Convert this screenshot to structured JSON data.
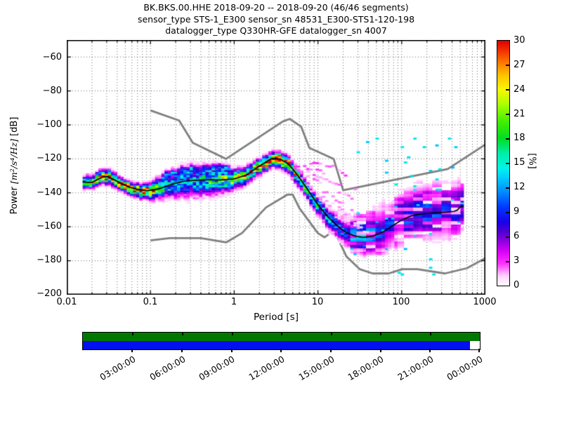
{
  "title": {
    "line1": "BK.BKS.00.HHE   2018-09-20 -- 2018-09-20  (46/46 segments)",
    "line2": "sensor_type STS-1_E300 sensor_sn 48531_E300-STS1-120-198",
    "line3": "datalogger_type Q330HR-GFE datalogger_sn 4007"
  },
  "axes": {
    "x": {
      "label": "Period [s]",
      "ticks": [
        "0.01",
        "0.1",
        "1",
        "10",
        "100",
        "1000"
      ]
    },
    "y": {
      "label_prefix": "Power ",
      "label_math": "[m²/s⁴/Hz]",
      "label_suffix": " [dB]",
      "ticks": [
        "−60",
        "−80",
        "−100",
        "−120",
        "−140",
        "−160",
        "−180",
        "−200"
      ]
    },
    "colorbar": {
      "label": "[%]",
      "ticks": [
        "30",
        "27",
        "24",
        "21",
        "18",
        "15",
        "12",
        "9",
        "6",
        "3",
        "0"
      ]
    }
  },
  "timeline": {
    "labels": [
      "03:00:00",
      "06:00:00",
      "09:00:00",
      "12:00:00",
      "15:00:00",
      "18:00:00",
      "21:00:00",
      "00:00:00"
    ],
    "green_color": "#007800",
    "blue_color": "#0010ee",
    "coverage_top": 1.0,
    "coverage_bottom": 0.975
  },
  "chart_data": {
    "type": "heatmap",
    "title": "BK.BKS.00.HHE 2018-09-20 -- 2018-09-20 (46/46 segments)",
    "xlabel": "Period [s]",
    "ylabel": "Power [m^2/s^4/Hz] [dB]",
    "xlim_log_period": [
      -2,
      3
    ],
    "ylim_db": [
      -200,
      -50
    ],
    "grid": true,
    "colorbar_label": "[%]",
    "colorbar_range": [
      0,
      30
    ],
    "colormap_stops": [
      [
        0.0,
        "#ffffff"
      ],
      [
        0.04,
        "#ffd0ff"
      ],
      [
        0.09,
        "#ff30ff"
      ],
      [
        0.14,
        "#d800f8"
      ],
      [
        0.18,
        "#9000e0"
      ],
      [
        0.22,
        "#5000d0"
      ],
      [
        0.26,
        "#1800e8"
      ],
      [
        0.32,
        "#0038ff"
      ],
      [
        0.38,
        "#0088ff"
      ],
      [
        0.44,
        "#00ccff"
      ],
      [
        0.48,
        "#00f4e8"
      ],
      [
        0.54,
        "#00eeaa"
      ],
      [
        0.6,
        "#00dd22"
      ],
      [
        0.67,
        "#44ee00"
      ],
      [
        0.74,
        "#aaff00"
      ],
      [
        0.8,
        "#f8f800"
      ],
      [
        0.86,
        "#ffc000"
      ],
      [
        0.91,
        "#ff7800"
      ],
      [
        0.96,
        "#f03000"
      ],
      [
        1.0,
        "#dd0000"
      ]
    ],
    "noise_model_color": "#7f7f7f",
    "nhnm": [
      [
        0.1,
        -91.5
      ],
      [
        0.22,
        -97.4
      ],
      [
        0.32,
        -110.5
      ],
      [
        0.8,
        -120.0
      ],
      [
        3.8,
        -98.0
      ],
      [
        4.6,
        -96.5
      ],
      [
        6.3,
        -101.0
      ],
      [
        7.9,
        -113.5
      ],
      [
        15.4,
        -120.0
      ],
      [
        20.0,
        -138.5
      ],
      [
        354.8,
        -126.0
      ],
      [
        1000,
        -111.5
      ]
    ],
    "nlnm": [
      [
        0.1,
        -168.0
      ],
      [
        0.17,
        -166.7
      ],
      [
        0.4,
        -166.7
      ],
      [
        0.8,
        -169.2
      ],
      [
        1.24,
        -163.7
      ],
      [
        2.4,
        -148.6
      ],
      [
        4.3,
        -141.1
      ],
      [
        5.0,
        -141.1
      ],
      [
        6.0,
        -149.0
      ],
      [
        10.0,
        -163.8
      ],
      [
        12.0,
        -166.2
      ],
      [
        15.6,
        -162.1
      ],
      [
        21.9,
        -177.5
      ],
      [
        31.6,
        -185.0
      ],
      [
        45.0,
        -187.5
      ],
      [
        70.0,
        -187.5
      ],
      [
        101.0,
        -185.0
      ],
      [
        154.0,
        -185.0
      ],
      [
        328.0,
        -187.5
      ],
      [
        600.0,
        -184.4
      ],
      [
        1000,
        -178.5
      ]
    ],
    "mode_line": [
      [
        0.0155,
        -133.6
      ],
      [
        0.02,
        -133.9
      ],
      [
        0.027,
        -130.6
      ],
      [
        0.03,
        -130.2
      ],
      [
        0.04,
        -133.2
      ],
      [
        0.055,
        -136.6
      ],
      [
        0.07,
        -138.0
      ],
      [
        0.09,
        -138.8
      ],
      [
        0.12,
        -138.0
      ],
      [
        0.18,
        -135.0
      ],
      [
        0.25,
        -133.2
      ],
      [
        0.35,
        -132.6
      ],
      [
        0.5,
        -132.3
      ],
      [
        0.7,
        -132.4
      ],
      [
        1.0,
        -131.8
      ],
      [
        1.4,
        -129.5
      ],
      [
        2.0,
        -124.2
      ],
      [
        2.8,
        -119.8
      ],
      [
        3.5,
        -120.0
      ],
      [
        4.5,
        -123.2
      ],
      [
        6.0,
        -131.0
      ],
      [
        8.0,
        -140.0
      ],
      [
        10.0,
        -147.0
      ],
      [
        13.0,
        -154.0
      ],
      [
        17.0,
        -159.5
      ],
      [
        22.0,
        -163.5
      ],
      [
        28.0,
        -165.6
      ],
      [
        35.0,
        -166.3
      ],
      [
        45.0,
        -165.5
      ],
      [
        60.0,
        -163.0
      ],
      [
        80.0,
        -159.0
      ],
      [
        100.0,
        -156.0
      ],
      [
        130.0,
        -153.5
      ],
      [
        180.0,
        -152.3
      ],
      [
        250.0,
        -151.8
      ],
      [
        350.0,
        -151.3
      ],
      [
        450.0,
        -150.8
      ],
      [
        500.0,
        -148.2
      ],
      [
        560.0,
        -148.0
      ]
    ],
    "band": [
      [
        0.0155,
        1.8,
        1.8,
        20
      ],
      [
        0.03,
        2.2,
        2.2,
        26
      ],
      [
        0.05,
        1.8,
        2.0,
        28
      ],
      [
        0.09,
        2.0,
        2.5,
        27
      ],
      [
        0.15,
        4.0,
        3.5,
        13
      ],
      [
        0.3,
        5.0,
        5.0,
        12
      ],
      [
        0.6,
        4.0,
        4.5,
        17
      ],
      [
        1.0,
        3.0,
        3.0,
        21
      ],
      [
        1.8,
        2.2,
        2.5,
        25
      ],
      [
        3.0,
        2.0,
        2.5,
        30
      ],
      [
        4.5,
        2.2,
        2.8,
        24
      ],
      [
        7.0,
        2.2,
        2.8,
        18
      ],
      [
        10.0,
        2.5,
        3.0,
        14
      ],
      [
        15.0,
        3.0,
        3.5,
        11
      ],
      [
        22.0,
        4.0,
        4.0,
        9
      ],
      [
        30.0,
        6.5,
        5.0,
        8
      ],
      [
        45.0,
        8.0,
        6.0,
        7
      ],
      [
        70.0,
        9.0,
        7.0,
        6
      ],
      [
        100.0,
        9.0,
        7.5,
        6
      ],
      [
        200.0,
        9.0,
        8.0,
        6
      ],
      [
        350.0,
        9.5,
        8.0,
        5
      ],
      [
        560.0,
        9.5,
        8.5,
        5
      ]
    ],
    "components": [
      {
        "p0": 0.13,
        "p1": 0.9,
        "offset": 6.3,
        "sigma": 1.6,
        "peak": 12
      },
      {
        "p0": 0.2,
        "p1": 0.6,
        "offset": -4.5,
        "sigma": 2.8,
        "peak": 4.5
      }
    ],
    "streaks": [
      [
        7,
        -122.3,
        15,
        -124,
        2.2
      ],
      [
        15,
        -124,
        22,
        -130,
        1.6
      ],
      [
        22,
        -130,
        35,
        -146,
        1.3
      ],
      [
        5,
        -123,
        12,
        -128,
        1.8
      ],
      [
        5.2,
        -125,
        20,
        -136,
        1.5
      ],
      [
        5.5,
        -127,
        26,
        -143,
        1.4
      ],
      [
        6,
        -130,
        30,
        -152,
        1.3
      ],
      [
        6.5,
        -133,
        32,
        -158,
        1.2
      ],
      [
        7.5,
        -137,
        35,
        -161,
        1.2
      ],
      [
        9,
        -142,
        38,
        -163,
        1.1
      ],
      [
        11,
        -149,
        40,
        -164,
        1.1
      ]
    ],
    "period_bins": {
      "log_start": -1.81,
      "log_end": 2.75,
      "log_step": 0.0376
    },
    "db_bin_width": 1,
    "long_period_strip_threshold": 25
  }
}
